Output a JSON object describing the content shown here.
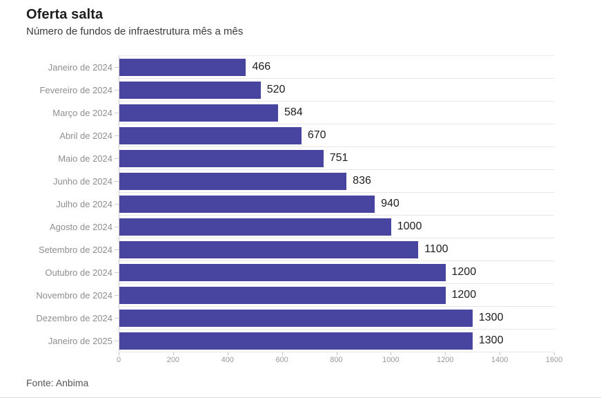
{
  "header": {
    "title": "Oferta salta",
    "subtitle": "Número de fundos de infraestrutura mês a mês"
  },
  "footer": {
    "source": "Fonte: Anbima"
  },
  "chart_data": {
    "type": "bar",
    "orientation": "horizontal",
    "title": "Oferta salta",
    "subtitle": "Número de fundos de infraestrutura mês a mês",
    "categories": [
      "Janeiro de 2024",
      "Fevereiro de 2024",
      "Março de 2024",
      "Abril de 2024",
      "Maio de 2024",
      "Junho de 2024",
      "Julho de 2024",
      "Agosto de 2024",
      "Setembro de 2024",
      "Outubro de 2024",
      "Novembro de 2024",
      "Dezembro de 2024",
      "Janeiro de 2025"
    ],
    "values": [
      466,
      520,
      584,
      670,
      751,
      836,
      940,
      1000,
      1100,
      1200,
      1200,
      1300,
      1300
    ],
    "xlim": [
      0,
      1600
    ],
    "x_ticks": [
      0,
      200,
      400,
      600,
      800,
      1000,
      1200,
      1400,
      1600
    ],
    "value_labels": true,
    "grid": "row-separators",
    "legend": "none",
    "bar_color": "#4845A1",
    "source": "Fonte: Anbima"
  }
}
